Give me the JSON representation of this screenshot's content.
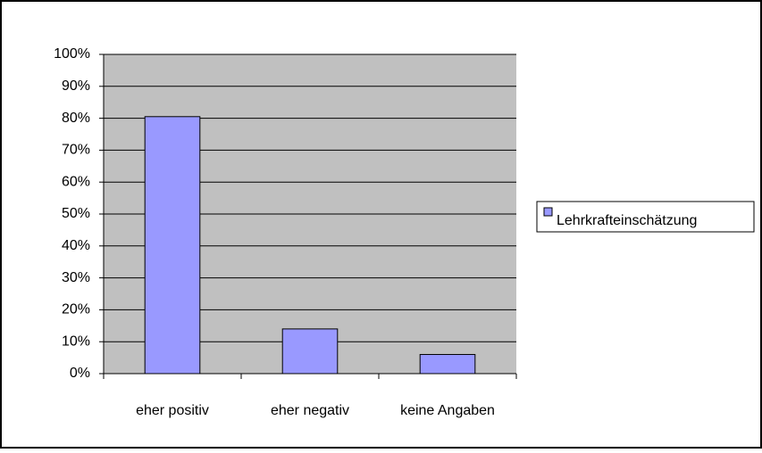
{
  "chart_data": {
    "type": "bar",
    "categories": [
      "eher positiv",
      "eher negativ",
      "keine Angaben"
    ],
    "series": [
      {
        "name": "Lehrkrafteinschätzung",
        "color": "#9999ff",
        "values": [
          80.5,
          14,
          6
        ]
      }
    ],
    "ylim": [
      0,
      100
    ],
    "yticks": [
      {
        "value": 0,
        "label": "0%"
      },
      {
        "value": 10,
        "label": "10%"
      },
      {
        "value": 20,
        "label": "20%"
      },
      {
        "value": 30,
        "label": "30%"
      },
      {
        "value": 40,
        "label": "40%"
      },
      {
        "value": 50,
        "label": "50%"
      },
      {
        "value": 60,
        "label": "60%"
      },
      {
        "value": 70,
        "label": "70%"
      },
      {
        "value": 80,
        "label": "80%"
      },
      {
        "value": 90,
        "label": "90%"
      },
      {
        "value": 100,
        "label": "100%"
      }
    ],
    "grid": true,
    "legend": "right",
    "plot_background": "#c0c0c0"
  }
}
